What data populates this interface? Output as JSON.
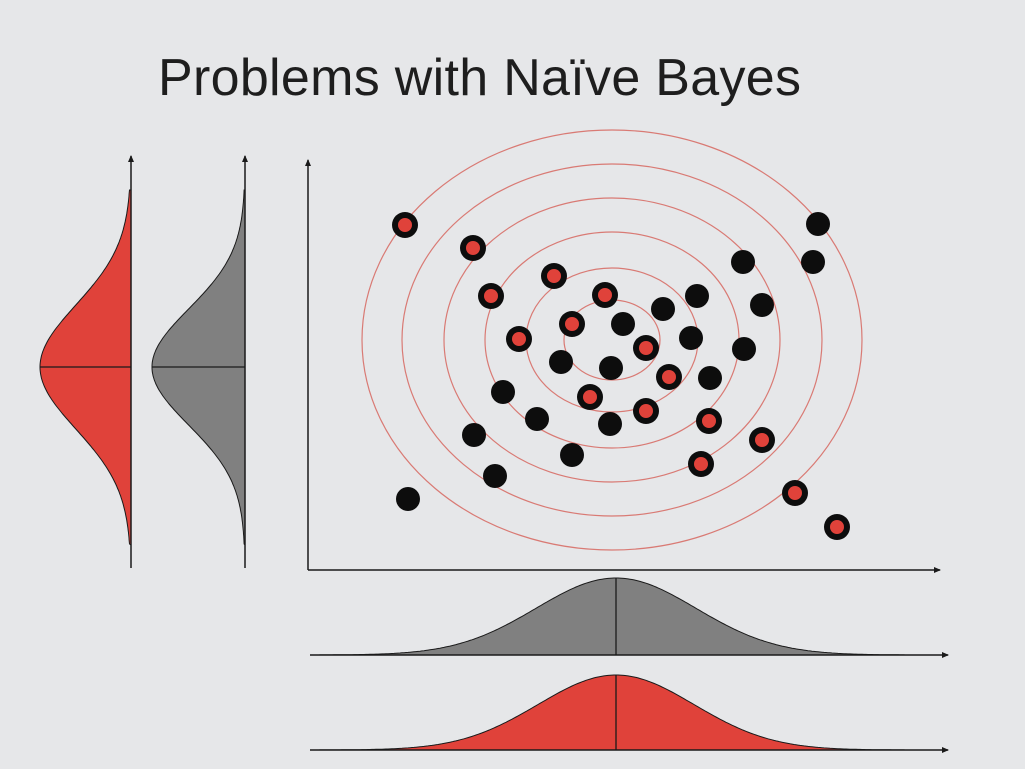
{
  "slide": {
    "title": "Problems with Naïve Bayes",
    "footer": ""
  },
  "colors": {
    "background": "#e6e7e9",
    "red": "#e0423a",
    "gray": "#808080",
    "dot_black": "#0d0d0d",
    "contour": "#d97a74",
    "axis": "#1a1a1a"
  }
}
